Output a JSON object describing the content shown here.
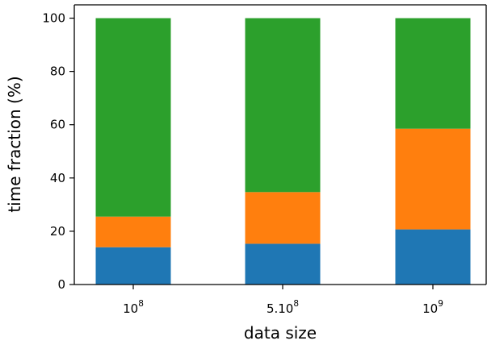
{
  "chart_data": {
    "type": "bar",
    "stacked": true,
    "categories": [
      {
        "base": "10",
        "exp": "8"
      },
      {
        "base": "5.10",
        "exp": "8"
      },
      {
        "base": "10",
        "exp": "9"
      }
    ],
    "series": [
      {
        "color": "#1f77b4",
        "values": [
          14,
          15.3,
          20.7
        ]
      },
      {
        "color": "#ff7f0e",
        "values": [
          11.5,
          19.4,
          37.8
        ]
      },
      {
        "color": "#2ca02c",
        "values": [
          74.5,
          65.3,
          41.5
        ]
      }
    ],
    "xlabel": "data size",
    "ylabel": "time fraction (%)",
    "ylim": [
      0,
      105
    ],
    "yticks": [
      0,
      20,
      40,
      60,
      80,
      100
    ],
    "grid": false
  }
}
